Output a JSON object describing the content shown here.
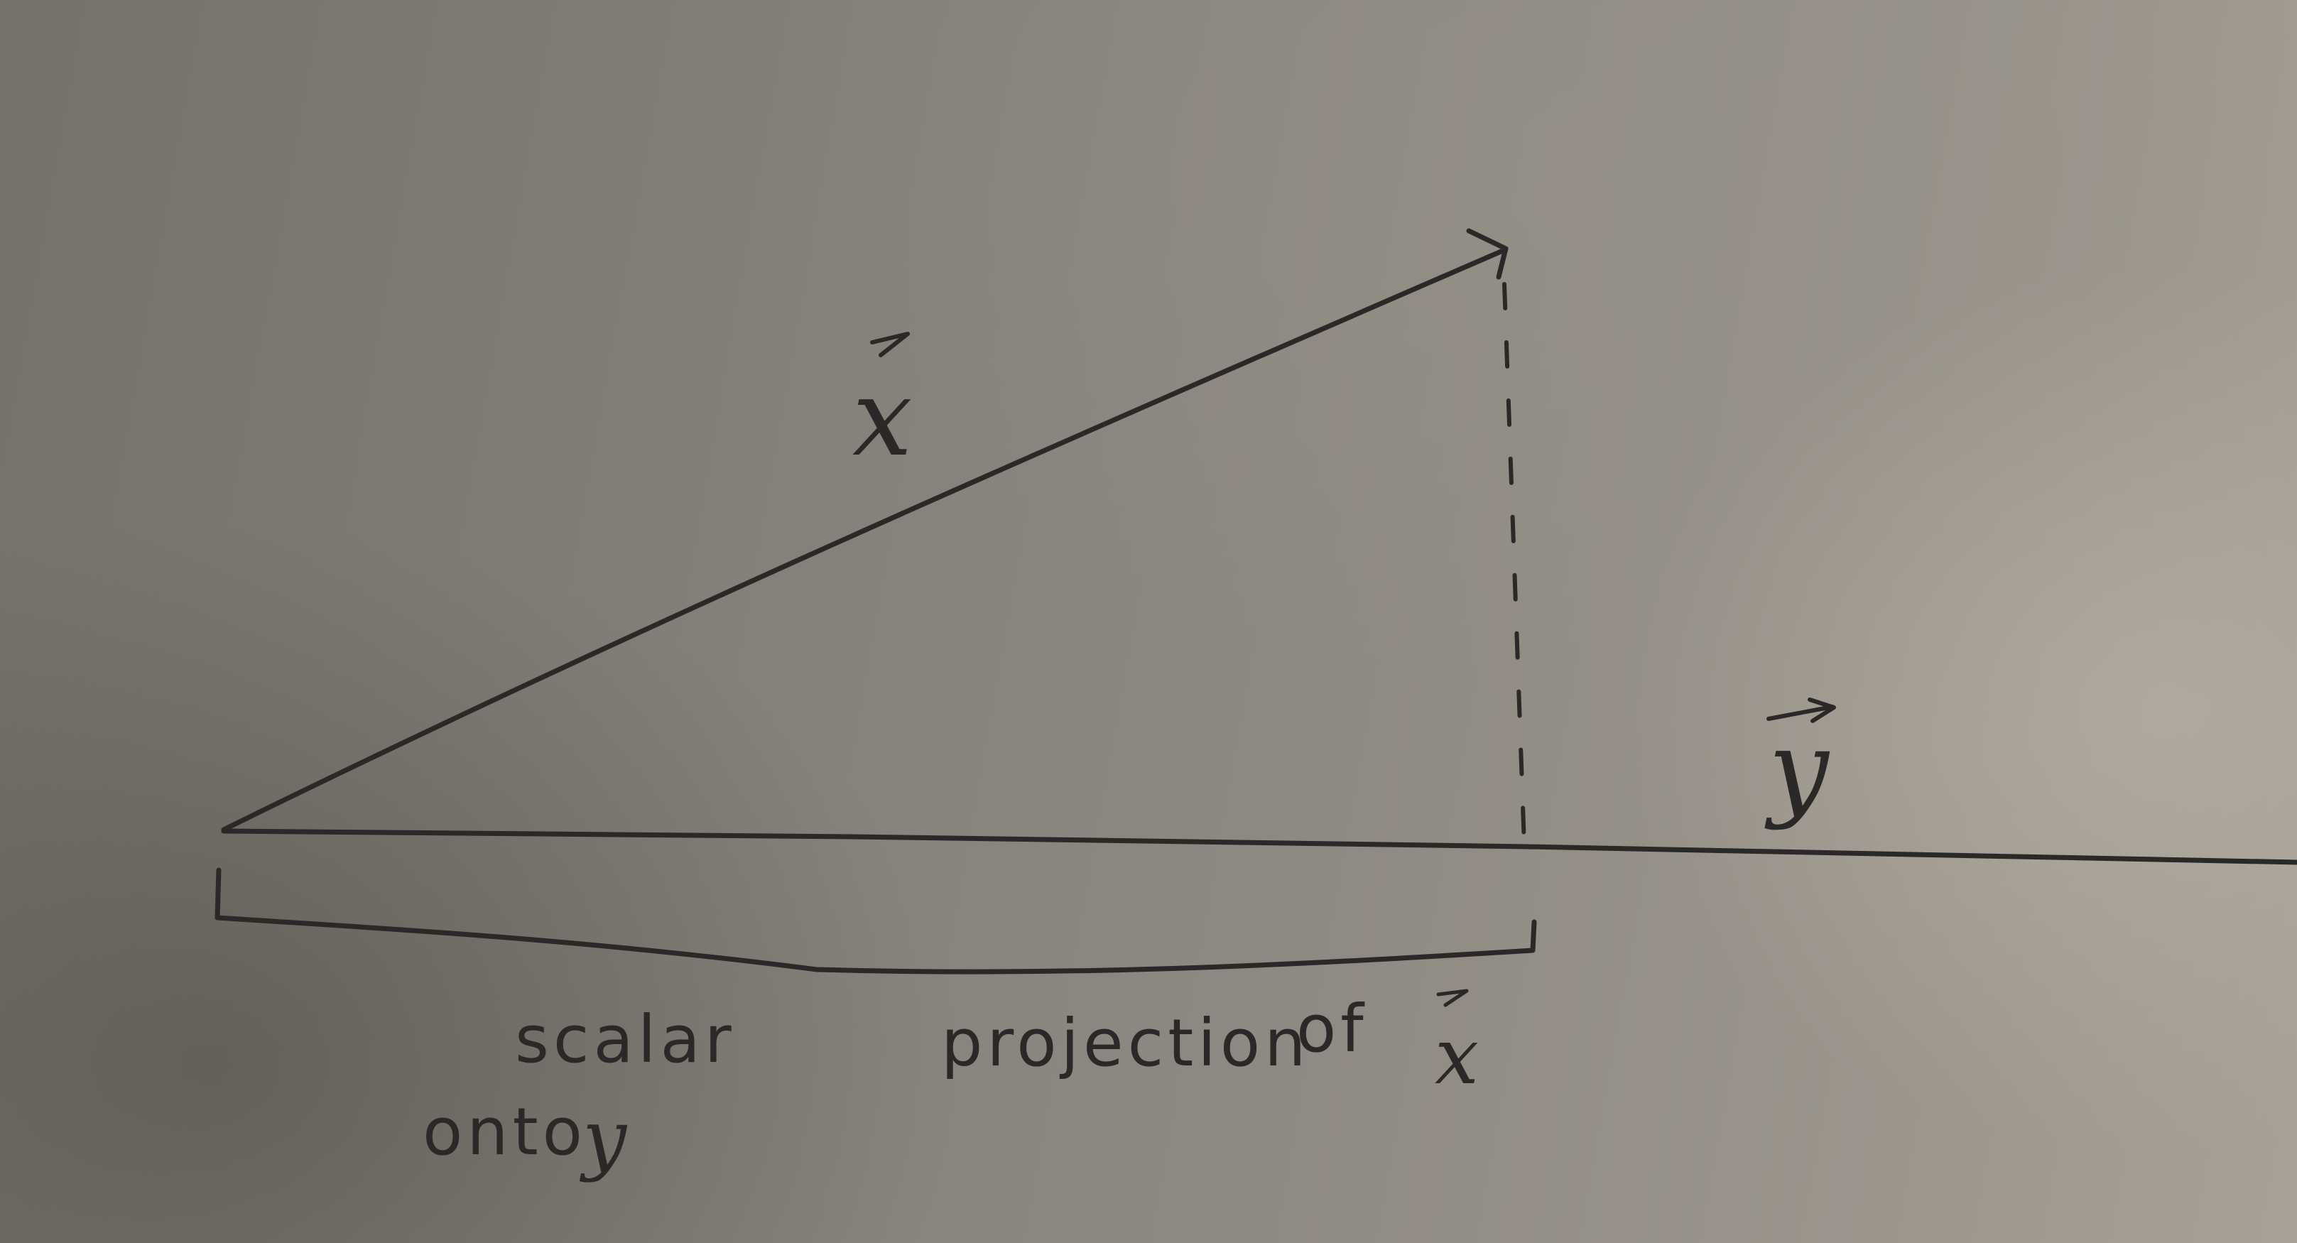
{
  "vectors": {
    "x_label": "x",
    "y_label": "y"
  },
  "caption": {
    "line1_word1": "scalar",
    "line1_word2": "projection",
    "line1_word3": "of",
    "line1_vector": "x",
    "line2_word": "onto",
    "line2_vector": "y"
  },
  "colors": {
    "ink": "#2b2927",
    "paper_light": "#a8a195",
    "paper_dark": "#6f6a63"
  }
}
